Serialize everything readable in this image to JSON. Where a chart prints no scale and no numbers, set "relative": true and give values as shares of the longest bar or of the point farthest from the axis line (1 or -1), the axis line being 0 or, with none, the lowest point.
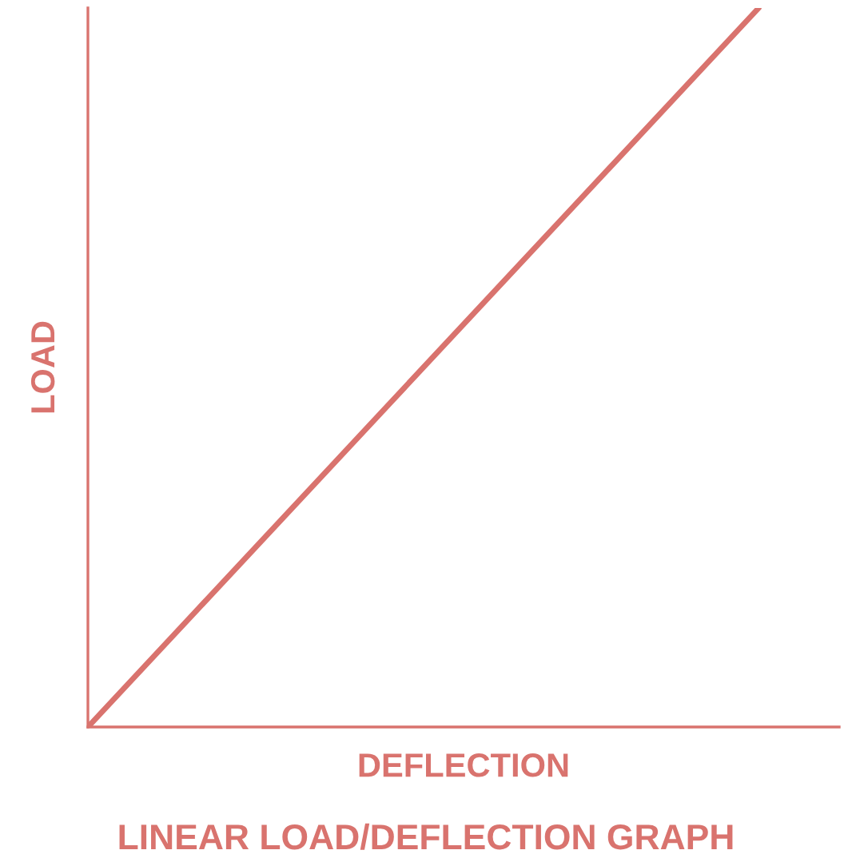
{
  "chart_data": {
    "type": "line",
    "title": "LINEAR LOAD/DEFLECTION GRAPH",
    "xlabel": "DEFLECTION",
    "ylabel": "LOAD",
    "relative": true,
    "categories": [
      null,
      null
    ],
    "series": [
      {
        "color": "#d9736e",
        "values": [
          0,
          1
        ]
      }
    ],
    "grid": false,
    "legend": false,
    "marker": "none",
    "line_style": "solid"
  }
}
